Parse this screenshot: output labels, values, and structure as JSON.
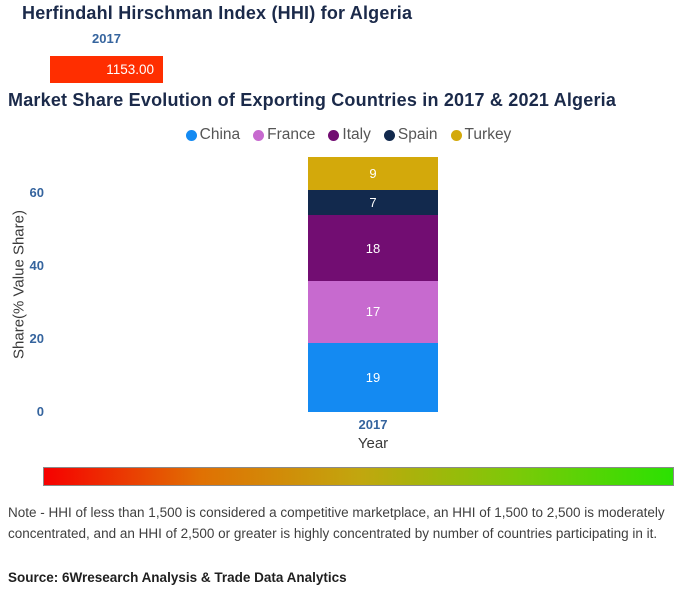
{
  "hhi_chart": {
    "title": "Herfindahl Hirschman Index (HHI) for Algeria",
    "year_label": "2017",
    "value_label": "1153.00",
    "bar_color": "#FF2E00"
  },
  "market_chart": {
    "title": "Market Share Evolution of Exporting Countries in 2017 & 2021 Algeria",
    "ylabel": "Share(% Value Share)",
    "xlabel": "Year",
    "x_tick": "2017",
    "y_ticks": [
      0,
      20,
      40,
      60
    ],
    "tick_color": "#35649e",
    "title_color": "#1b2a4a"
  },
  "chart_data": [
    {
      "type": "bar",
      "orientation": "horizontal",
      "title": "Herfindahl Hirschman Index (HHI) for Algeria",
      "categories": [
        "2017"
      ],
      "values": [
        1153.0
      ],
      "value_labels": [
        "1153.00"
      ],
      "bar_color": "#FF2E00"
    },
    {
      "type": "bar",
      "stacked": true,
      "title": "Market Share Evolution of Exporting Countries in 2017 & 2021 Algeria",
      "categories": [
        "2017"
      ],
      "series": [
        {
          "name": "China",
          "values": [
            19
          ],
          "color": "#148af2"
        },
        {
          "name": "France",
          "values": [
            17
          ],
          "color": "#c76acf"
        },
        {
          "name": "Italy",
          "values": [
            18
          ],
          "color": "#720d72"
        },
        {
          "name": "Spain",
          "values": [
            7
          ],
          "color": "#12294d"
        },
        {
          "name": "Turkey",
          "values": [
            9
          ],
          "color": "#d3a90b"
        }
      ],
      "xlabel": "Year",
      "ylabel": "Share(% Value Share)",
      "ylim": [
        0,
        70
      ],
      "y_ticks": [
        0,
        20,
        40,
        60
      ],
      "legend_position": "top",
      "grid": false
    }
  ],
  "hhi_scale_gradient": [
    "#f60000",
    "#e07103",
    "#c2a60e",
    "#7cc908",
    "#2be102"
  ],
  "note": "Note - HHI of less than 1,500 is considered a competitive marketplace, an HHI of 1,500 to 2,500 is moderately concentrated, and an HHI of 2,500 or greater is highly concentrated by number of countries participating in it.",
  "source": "Source: 6Wresearch Analysis & Trade Data Analytics"
}
